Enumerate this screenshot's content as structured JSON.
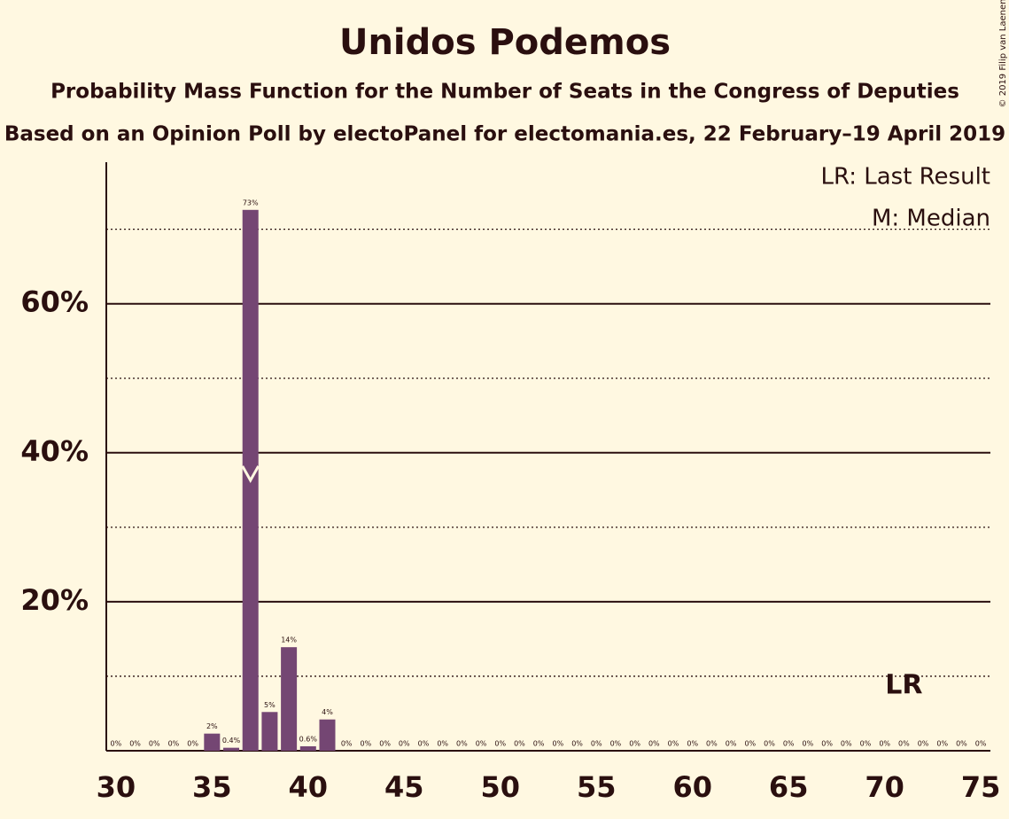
{
  "chart_data": {
    "type": "bar",
    "title": "Unidos Podemos",
    "subtitle": "Probability Mass Function for the Number of Seats in the Congress of Deputies",
    "subtitle2": "Based on an Opinion Poll by electoPanel for electomania.es, 22 February–19 April 2019",
    "copyright": "© 2019 Filip van Laenen",
    "legend": [
      "LR: Last Result",
      "M: Median"
    ],
    "last_result_label": "LR",
    "last_result": 71,
    "median": 37,
    "color": "#744673",
    "x": [
      30,
      31,
      32,
      33,
      34,
      35,
      36,
      37,
      38,
      39,
      40,
      41,
      42,
      43,
      44,
      45,
      46,
      47,
      48,
      49,
      50,
      51,
      52,
      53,
      54,
      55,
      56,
      57,
      58,
      59,
      60,
      61,
      62,
      63,
      64,
      65,
      66,
      67,
      68,
      69,
      70,
      71,
      72,
      73,
      74,
      75
    ],
    "values": [
      0,
      0,
      0,
      0,
      0,
      2.3,
      0.4,
      72.6,
      5.2,
      13.9,
      0.6,
      4.2,
      0,
      0,
      0,
      0,
      0,
      0,
      0,
      0,
      0,
      0,
      0,
      0,
      0,
      0,
      0,
      0,
      0,
      0,
      0,
      0,
      0,
      0,
      0,
      0,
      0,
      0,
      0,
      0,
      0,
      0,
      0,
      0,
      0,
      0
    ],
    "value_labels": [
      "0%",
      "0%",
      "0%",
      "0%",
      "0%",
      "2%",
      "0.4%",
      "73%",
      "5%",
      "14%",
      "0.6%",
      "4%",
      "0%",
      "0%",
      "0%",
      "0%",
      "0%",
      "0%",
      "0%",
      "0%",
      "0%",
      "0%",
      "0%",
      "0%",
      "0%",
      "0%",
      "0%",
      "0%",
      "0%",
      "0%",
      "0%",
      "0%",
      "0%",
      "0%",
      "0%",
      "0%",
      "0%",
      "0%",
      "0%",
      "0%",
      "0%",
      "0%",
      "0%",
      "0%",
      "0%",
      "0%"
    ],
    "xlim": [
      29.5,
      75.5
    ],
    "xticks": [
      30,
      35,
      40,
      45,
      50,
      55,
      60,
      65,
      70,
      75
    ],
    "ylim": [
      0,
      79
    ],
    "yticks": [
      {
        "value": 20,
        "label": "20%"
      },
      {
        "value": 40,
        "label": "40%"
      },
      {
        "value": 60,
        "label": "60%"
      }
    ],
    "ygrid_minor": [
      10,
      30,
      50,
      70
    ],
    "grid": true
  }
}
